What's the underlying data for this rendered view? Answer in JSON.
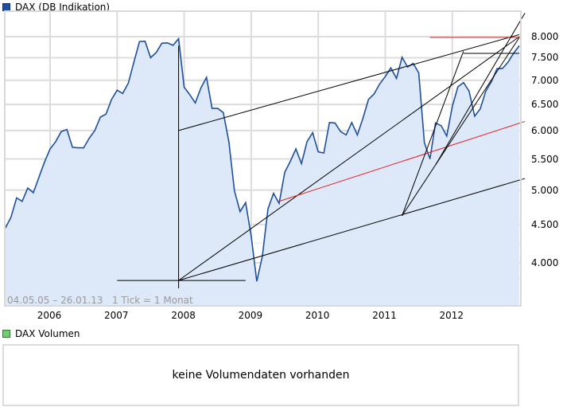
{
  "legend": {
    "main_label": "DAX (DB Indikation)",
    "main_color": "#1e4f9c",
    "volume_label": "DAX Volumen",
    "volume_color": "#6fce6f"
  },
  "range_note": "04.05.05 – 26.01.13   1 Tick = 1 Monat",
  "volume_panel": {
    "message": "keine Volumendaten vorhanden"
  },
  "chart_data": {
    "type": "area",
    "title": "DAX (DB Indikation)",
    "xlabel": "",
    "ylabel": "",
    "y_scale": "log",
    "ylim": [
      3600,
      8300
    ],
    "grid": true,
    "legend_position": "top-left",
    "fill_color": "#dde8f8",
    "line_color": "#1e4f9c",
    "y_ticks": [
      "4.000",
      "4.500",
      "5.000",
      "5.500",
      "6.000",
      "6.500",
      "7.000",
      "7.500",
      "8.000"
    ],
    "x_ticks": [
      "2006",
      "2007",
      "2008",
      "2009",
      "2010",
      "2011",
      "2012"
    ],
    "date_range": "04.05.05 – 26.01.13",
    "tick_interval": "1 Tick = 1 Monat",
    "series": [
      {
        "name": "DAX (DB Indikation)",
        "x": [
          "2005-05",
          "2005-06",
          "2005-07",
          "2005-08",
          "2005-09",
          "2005-10",
          "2005-11",
          "2005-12",
          "2006-01",
          "2006-02",
          "2006-03",
          "2006-04",
          "2006-05",
          "2006-06",
          "2006-07",
          "2006-08",
          "2006-09",
          "2006-10",
          "2006-11",
          "2006-12",
          "2007-01",
          "2007-02",
          "2007-03",
          "2007-04",
          "2007-05",
          "2007-06",
          "2007-07",
          "2007-08",
          "2007-09",
          "2007-10",
          "2007-11",
          "2007-12",
          "2008-01",
          "2008-02",
          "2008-03",
          "2008-04",
          "2008-05",
          "2008-06",
          "2008-07",
          "2008-08",
          "2008-09",
          "2008-10",
          "2008-11",
          "2008-12",
          "2009-01",
          "2009-02",
          "2009-03",
          "2009-04",
          "2009-05",
          "2009-06",
          "2009-07",
          "2009-08",
          "2009-09",
          "2009-10",
          "2009-11",
          "2009-12",
          "2010-01",
          "2010-02",
          "2010-03",
          "2010-04",
          "2010-05",
          "2010-06",
          "2010-07",
          "2010-08",
          "2010-09",
          "2010-10",
          "2010-11",
          "2010-12",
          "2011-01",
          "2011-02",
          "2011-03",
          "2011-04",
          "2011-05",
          "2011-06",
          "2011-07",
          "2011-08",
          "2011-09",
          "2011-10",
          "2011-11",
          "2011-12",
          "2012-01",
          "2012-02",
          "2012-03",
          "2012-04",
          "2012-05",
          "2012-06",
          "2012-07",
          "2012-08",
          "2012-09",
          "2012-10",
          "2012-11",
          "2012-12",
          "2013-01"
        ],
        "values": [
          4450,
          4600,
          4880,
          4830,
          5030,
          4960,
          5200,
          5450,
          5670,
          5800,
          5980,
          6020,
          5700,
          5690,
          5690,
          5860,
          6000,
          6250,
          6310,
          6600,
          6790,
          6720,
          6940,
          7400,
          7880,
          7890,
          7500,
          7620,
          7840,
          7850,
          7790,
          7950,
          6850,
          6700,
          6530,
          6840,
          7060,
          6420,
          6420,
          6340,
          5800,
          4990,
          4680,
          4810,
          4340,
          3780,
          4080,
          4720,
          4950,
          4800,
          5280,
          5460,
          5670,
          5420,
          5800,
          5960,
          5620,
          5600,
          6150,
          6140,
          5980,
          5920,
          6150,
          5920,
          6230,
          6600,
          6710,
          6920,
          7080,
          7270,
          7040,
          7510,
          7290,
          7370,
          7160,
          5780,
          5500,
          6140,
          6090,
          5900,
          6460,
          6860,
          6950,
          6770,
          6270,
          6410,
          6770,
          6970,
          7250,
          7260,
          7400,
          7610,
          7780
        ]
      }
    ],
    "overlays": [
      {
        "type": "trendline",
        "color": "#000000",
        "from": [
          "2007-12",
          "6000"
        ],
        "to": [
          "2013-01",
          "8050"
        ]
      },
      {
        "type": "vertical",
        "color": "#000000",
        "x": "2007-12",
        "from": "3700",
        "to": "7780"
      },
      {
        "type": "horizontal",
        "color": "#000000",
        "y": "3790",
        "from": "2007-01",
        "to": "2008-12"
      },
      {
        "type": "trendline",
        "color": "#000000",
        "from": [
          "2007-12",
          "3790"
        ],
        "to": [
          "2013-01",
          "8000"
        ]
      },
      {
        "type": "trendline",
        "color": "#000000",
        "from": [
          "2007-12",
          "3790"
        ],
        "to": [
          "2013-02",
          "5180"
        ]
      },
      {
        "type": "trendline",
        "color": "#e02020",
        "from": [
          "2009-06",
          "4830"
        ],
        "to": [
          "2013-02",
          "6170"
        ]
      },
      {
        "type": "horizontal",
        "color": "#e02020",
        "y": "7980",
        "from": "2011-09",
        "to": "2013-01"
      },
      {
        "type": "horizontal",
        "color": "#000000",
        "y": "7600",
        "from": "2012-03",
        "to": "2013-01"
      },
      {
        "type": "trendline",
        "color": "#000000",
        "from": [
          "2011-04",
          "4620"
        ],
        "to": [
          "2012-03",
          "7650"
        ]
      },
      {
        "type": "trendline",
        "color": "#000000",
        "from": [
          "2011-04",
          "4620"
        ],
        "to": [
          "2013-01",
          "7980"
        ]
      },
      {
        "type": "trendline",
        "color": "#000000",
        "from": [
          "2011-10",
          "5400"
        ],
        "to": [
          "2013-02",
          "8600"
        ]
      }
    ]
  }
}
